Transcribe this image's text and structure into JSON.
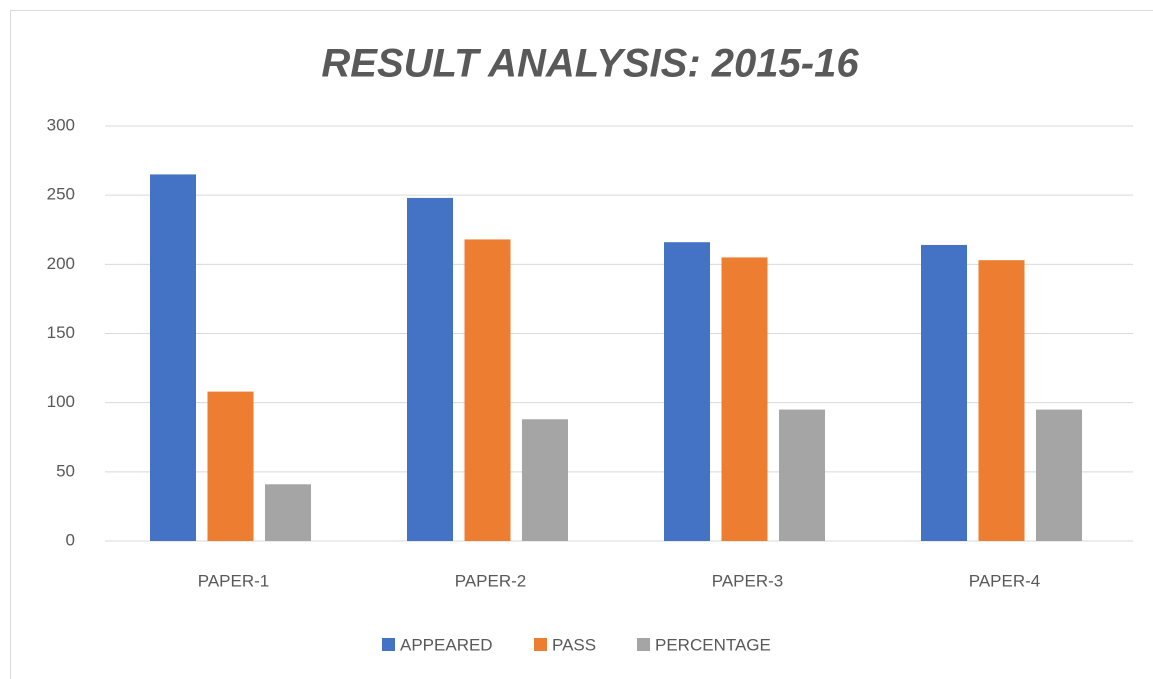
{
  "chart_data": {
    "type": "bar",
    "title": "RESULT ANALYSIS: 2015-16",
    "categories": [
      "PAPER-1",
      "PAPER-2",
      "PAPER-3",
      "PAPER-4"
    ],
    "series": [
      {
        "name": "APPEARED",
        "color": "#4472c4",
        "values": [
          265,
          248,
          216,
          214
        ]
      },
      {
        "name": "PASS",
        "color": "#ed7d31",
        "values": [
          108,
          218,
          205,
          203
        ]
      },
      {
        "name": "PERCENTAGE",
        "color": "#a5a5a5",
        "values": [
          41,
          88,
          95,
          95
        ]
      }
    ],
    "ylim": [
      0,
      300
    ],
    "yticks": [
      0,
      50,
      100,
      150,
      200,
      250,
      300
    ],
    "grid": true,
    "legend": "bottom"
  }
}
